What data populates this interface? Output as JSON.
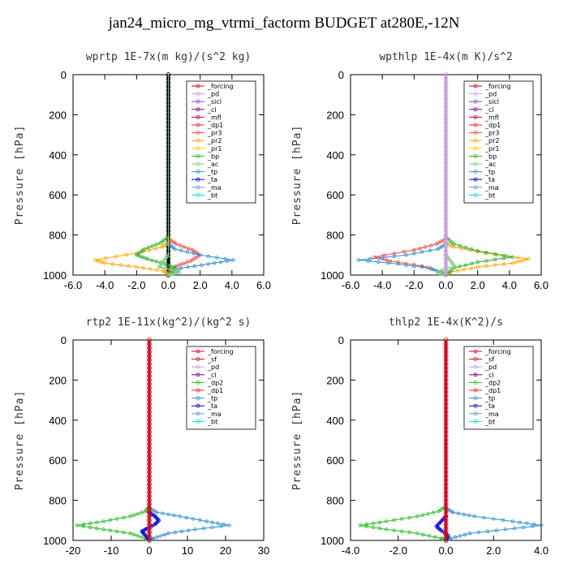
{
  "figure_title": "jan24_micro_mg_vtrmi_factorm  BUDGET at280E,-12N",
  "colors": {
    "_forcing_black": "#000000",
    "_forcing_red": "#e0001b",
    "_sf": "#e0001b",
    "_pd": "#c8a0e0",
    "_sicl": "#8050d0",
    "_cl": "#800080",
    "_mfl": "#c0004a",
    "_dp1": "#ff2020",
    "_dp2": "#20c020",
    "_pr3": "#ff4040",
    "_pr2": "#ffa500",
    "_pr1": "#ffcc00",
    "_bp": "#20b020",
    "_ac": "#80d080",
    "_tp": "#2a8fd0",
    "_ta": "#0000e0",
    "_ma": "#60a0d0",
    "_bt": "#00e0e0",
    "_pd_yellow": "#ffd000",
    "_cl_yellow": "#e8d000"
  },
  "chart_data": [
    {
      "type": "line",
      "title": "wprtp   1E-7x(m kg)/(s^2 kg)",
      "ylabel": "Pressure [hPa]",
      "xlim": [
        -6,
        6
      ],
      "ylim": [
        1000,
        0
      ],
      "xticks": [
        "-6.0",
        "-4.0",
        "-2.0",
        "0.0",
        "2.0",
        "4.0",
        "6.0"
      ],
      "yticks": [
        "0",
        "200",
        "400",
        "600",
        "800",
        "1000"
      ],
      "legend_position": "top-right",
      "legend": [
        "_forcing",
        "_pd",
        "_sicl",
        "_cl",
        "_mfl",
        "_dp1",
        "_pr3",
        "_pr2",
        "_pr1",
        "_bp",
        "_ac",
        "_tp",
        "_ta",
        "_ma",
        "_bt"
      ],
      "series": [
        {
          "name": "_forcing",
          "color_key": "_forcing_black",
          "x": [
            0,
            0
          ],
          "y": [
            0,
            1000
          ]
        },
        {
          "name": "_pr2",
          "color_key": "_pr2",
          "x": [
            0,
            0,
            -0.4,
            -2.0,
            -4.6,
            -4.0,
            -2.0,
            -0.3,
            0,
            0
          ],
          "y": [
            0,
            840,
            860,
            890,
            925,
            940,
            960,
            980,
            995,
            1000
          ]
        },
        {
          "name": "_pr3",
          "color_key": "_pr3",
          "x": [
            0,
            0,
            0.5,
            1.5,
            2.0,
            1.4,
            0.5,
            0.1,
            0
          ],
          "y": [
            0,
            820,
            845,
            875,
            900,
            930,
            955,
            985,
            1000
          ]
        },
        {
          "name": "_tp",
          "color_key": "_tp",
          "x": [
            0,
            0,
            0.4,
            2.0,
            4.1,
            2.5,
            0.8,
            0.2,
            0
          ],
          "y": [
            0,
            845,
            870,
            900,
            925,
            945,
            965,
            990,
            1000
          ]
        },
        {
          "name": "_bp",
          "color_key": "_bp",
          "x": [
            0,
            0,
            -0.5,
            -1.5,
            -2.0,
            -1.3,
            -0.2,
            0.4,
            0.3,
            0
          ],
          "y": [
            0,
            810,
            840,
            870,
            900,
            920,
            945,
            965,
            985,
            1000
          ]
        },
        {
          "name": "_ac",
          "color_key": "_ac",
          "x": [
            0,
            0,
            -0.3,
            -0.6,
            0.3,
            0.7,
            0.2,
            0
          ],
          "y": [
            0,
            900,
            930,
            960,
            975,
            985,
            995,
            1000
          ]
        }
      ]
    },
    {
      "type": "line",
      "title": "wpthlp   1E-4x(m K)/s^2",
      "ylabel": "Pressure [hPa]",
      "xlim": [
        -6,
        6
      ],
      "ylim": [
        1000,
        0
      ],
      "xticks": [
        "-6.0",
        "-4.0",
        "-2.0",
        "0.0",
        "2.0",
        "4.0",
        "6.0"
      ],
      "yticks": [
        "0",
        "200",
        "400",
        "600",
        "800",
        "1000"
      ],
      "legend_position": "top-right",
      "legend": [
        "_forcing",
        "_pd",
        "_sicl",
        "_cl",
        "_mfl",
        "_dp1",
        "_pr3",
        "_pr2",
        "_pr1",
        "_bp",
        "_ac",
        "_tp",
        "_ta",
        "_ma",
        "_bt"
      ],
      "series": [
        {
          "name": "_pr2",
          "color_key": "_pr2",
          "x": [
            0,
            0,
            0.5,
            2.5,
            5.2,
            4.2,
            2.0,
            0.3,
            0
          ],
          "y": [
            0,
            840,
            860,
            890,
            920,
            940,
            960,
            985,
            1000
          ]
        },
        {
          "name": "_pr3",
          "color_key": "_pr3",
          "x": [
            0,
            0,
            -0.6,
            -2.0,
            -4.5,
            -3.5,
            -1.5,
            -0.3,
            0
          ],
          "y": [
            0,
            820,
            845,
            875,
            910,
            930,
            955,
            985,
            1000
          ]
        },
        {
          "name": "_tp",
          "color_key": "_tp",
          "x": [
            0,
            0,
            -0.5,
            -2.5,
            -5.5,
            -3.0,
            -1.0,
            -0.2,
            0
          ],
          "y": [
            0,
            845,
            870,
            900,
            925,
            945,
            965,
            990,
            1000
          ]
        },
        {
          "name": "_bp",
          "color_key": "_bp",
          "x": [
            0,
            0,
            0.5,
            2.0,
            4.2,
            2.0,
            0.5,
            0
          ],
          "y": [
            0,
            810,
            845,
            880,
            910,
            935,
            965,
            1000
          ]
        },
        {
          "name": "_ac",
          "color_key": "_ac",
          "x": [
            0,
            0,
            0.3,
            0.6,
            -0.2,
            -0.5,
            0
          ],
          "y": [
            0,
            900,
            930,
            960,
            975,
            990,
            1000
          ]
        },
        {
          "name": "_forcing",
          "color_key": "_pd",
          "x": [
            0,
            0
          ],
          "y": [
            0,
            1000
          ]
        }
      ]
    },
    {
      "type": "line",
      "title": "rtp2   1E-11x(kg^2)/(kg^2 s)",
      "ylabel": "Pressure [hPa]",
      "xlim": [
        -20,
        30
      ],
      "ylim": [
        1000,
        0
      ],
      "xticks": [
        "-20",
        "-10",
        "0",
        "10",
        "20",
        "30"
      ],
      "yticks": [
        "0",
        "200",
        "400",
        "600",
        "800",
        "1000"
      ],
      "legend_position": "top-right",
      "legend": [
        "_forcing",
        "_sf",
        "_pd",
        "_cl",
        "_dp2",
        "_dp1",
        "_tp",
        "_ta",
        "_ma",
        "_bt"
      ],
      "series": [
        {
          "name": "_dp1",
          "color_key": "_dp2",
          "x": [
            0,
            0,
            -1,
            -5,
            -12,
            -19,
            -12,
            -5,
            -1,
            0
          ],
          "y": [
            0,
            830,
            855,
            880,
            905,
            925,
            945,
            965,
            990,
            1000
          ]
        },
        {
          "name": "_tp",
          "color_key": "_tp",
          "x": [
            0,
            0,
            2,
            8,
            15,
            21,
            12,
            5,
            1,
            0
          ],
          "y": [
            0,
            840,
            860,
            880,
            905,
            925,
            945,
            965,
            990,
            1000
          ]
        },
        {
          "name": "_ta",
          "color_key": "_ta",
          "x": [
            0,
            0,
            1.5,
            2.5,
            1.5,
            -0.5,
            -2.0,
            -1.0,
            0
          ],
          "y": [
            0,
            860,
            880,
            900,
            920,
            940,
            955,
            975,
            1000
          ]
        },
        {
          "name": "_forcing",
          "color_key": "_forcing_red",
          "x": [
            0,
            0
          ],
          "y": [
            0,
            1000
          ]
        }
      ]
    },
    {
      "type": "line",
      "title": "thlp2   1E-4x(K^2)/s",
      "ylabel": "Pressure [hPa]",
      "xlim": [
        -4,
        4
      ],
      "ylim": [
        1000,
        0
      ],
      "xticks": [
        "-4.0",
        "-2.0",
        "0.0",
        "2.0",
        "4.0"
      ],
      "yticks": [
        "0",
        "200",
        "400",
        "600",
        "800",
        "1000"
      ],
      "legend_position": "top-right",
      "legend": [
        "_forcing",
        "_sf",
        "_pd",
        "_cl",
        "_dp2",
        "_dp1",
        "_tp",
        "_ta",
        "_ma",
        "_bt"
      ],
      "series": [
        {
          "name": "_dp1",
          "color_key": "_dp2",
          "x": [
            0,
            0,
            -0.3,
            -1.2,
            -2.5,
            -3.6,
            -2.5,
            -1.2,
            -0.2,
            0
          ],
          "y": [
            0,
            830,
            855,
            880,
            905,
            925,
            945,
            965,
            990,
            1000
          ]
        },
        {
          "name": "_tp",
          "color_key": "_tp",
          "x": [
            0,
            0,
            0.3,
            1.2,
            2.8,
            4.0,
            2.5,
            1.0,
            0.2,
            0
          ],
          "y": [
            0,
            840,
            860,
            880,
            905,
            925,
            945,
            965,
            990,
            1000
          ]
        },
        {
          "name": "_ta",
          "color_key": "_ta",
          "x": [
            0,
            0,
            -0.2,
            -0.4,
            -0.2,
            0.1,
            0
          ],
          "y": [
            0,
            880,
            905,
            930,
            950,
            975,
            1000
          ]
        },
        {
          "name": "_forcing",
          "color_key": "_forcing_red",
          "x": [
            0,
            0
          ],
          "y": [
            0,
            1000
          ]
        }
      ]
    }
  ]
}
